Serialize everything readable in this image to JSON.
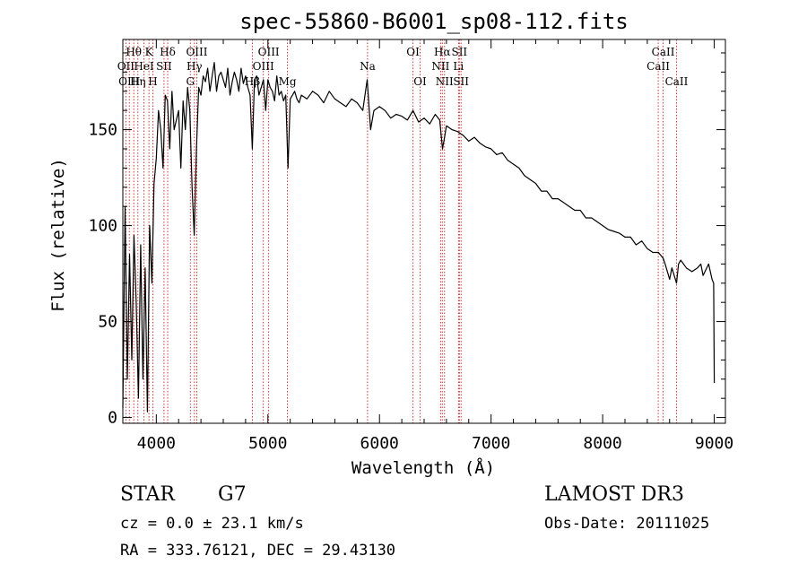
{
  "chart_data": {
    "type": "line",
    "title": "spec-55860-B6001_sp08-112.fits",
    "xlabel": "Wavelength (Å)",
    "ylabel": "Flux (relative)",
    "xlim": [
      3700,
      9100
    ],
    "ylim": [
      -3,
      197
    ],
    "xticks": [
      4000,
      5000,
      6000,
      7000,
      8000,
      9000
    ],
    "yticks": [
      0,
      50,
      100,
      150
    ],
    "series": [
      {
        "name": "flux",
        "x": [
          3700,
          3720,
          3740,
          3760,
          3780,
          3800,
          3820,
          3840,
          3860,
          3880,
          3900,
          3920,
          3940,
          3960,
          3980,
          4000,
          4020,
          4040,
          4060,
          4080,
          4100,
          4120,
          4140,
          4160,
          4180,
          4200,
          4220,
          4240,
          4260,
          4280,
          4300,
          4320,
          4340,
          4360,
          4380,
          4400,
          4420,
          4440,
          4460,
          4480,
          4500,
          4520,
          4540,
          4560,
          4580,
          4600,
          4620,
          4640,
          4660,
          4680,
          4700,
          4720,
          4740,
          4760,
          4780,
          4800,
          4820,
          4840,
          4860,
          4880,
          4900,
          4920,
          4940,
          4960,
          4980,
          5000,
          5020,
          5040,
          5060,
          5080,
          5100,
          5120,
          5140,
          5160,
          5180,
          5200,
          5220,
          5240,
          5260,
          5280,
          5300,
          5350,
          5400,
          5450,
          5500,
          5550,
          5600,
          5650,
          5700,
          5750,
          5800,
          5850,
          5890,
          5920,
          5950,
          6000,
          6050,
          6100,
          6150,
          6200,
          6250,
          6300,
          6350,
          6400,
          6450,
          6500,
          6540,
          6565,
          6580,
          6600,
          6650,
          6700,
          6750,
          6800,
          6850,
          6900,
          6950,
          7000,
          7050,
          7100,
          7150,
          7200,
          7250,
          7300,
          7350,
          7400,
          7450,
          7500,
          7550,
          7600,
          7650,
          7700,
          7750,
          7800,
          7850,
          7900,
          7950,
          8000,
          8050,
          8100,
          8150,
          8200,
          8250,
          8300,
          8350,
          8400,
          8450,
          8500,
          8542,
          8560,
          8600,
          8620,
          8662,
          8680,
          8700,
          8750,
          8800,
          8850,
          8880,
          8900,
          8950,
          8980,
          8995,
          9000
        ],
        "y": [
          5,
          110,
          20,
          85,
          30,
          95,
          60,
          10,
          90,
          20,
          78,
          3,
          100,
          70,
          122,
          135,
          160,
          150,
          130,
          168,
          165,
          140,
          170,
          150,
          155,
          160,
          130,
          165,
          150,
          172,
          160,
          120,
          95,
          140,
          172,
          168,
          178,
          175,
          182,
          170,
          178,
          185,
          170,
          178,
          180,
          176,
          172,
          182,
          168,
          175,
          180,
          176,
          170,
          182,
          174,
          178,
          172,
          168,
          140,
          176,
          178,
          168,
          172,
          176,
          160,
          176,
          172,
          170,
          165,
          178,
          168,
          170,
          165,
          168,
          130,
          166,
          168,
          170,
          166,
          164,
          168,
          166,
          170,
          168,
          164,
          170,
          166,
          164,
          162,
          166,
          164,
          160,
          176,
          150,
          160,
          162,
          160,
          156,
          158,
          157,
          155,
          160,
          154,
          156,
          153,
          158,
          155,
          140,
          145,
          152,
          150,
          149,
          147,
          144,
          146,
          143,
          141,
          140,
          137,
          138,
          134,
          132,
          130,
          126,
          124,
          122,
          118,
          118,
          114,
          114,
          112,
          110,
          108,
          108,
          104,
          104,
          102,
          100,
          98,
          97,
          96,
          94,
          94,
          90,
          92,
          88,
          86,
          86,
          83,
          80,
          72,
          78,
          70,
          80,
          82,
          78,
          76,
          78,
          80,
          74,
          80,
          72,
          70,
          18
        ]
      }
    ],
    "lines": [
      {
        "label": "Hθ",
        "wavelength": 3798,
        "level": 0
      },
      {
        "label": "OII",
        "wavelength": 3727,
        "level": 1
      },
      {
        "label": "OIII",
        "wavelength": 3758,
        "level": 2
      },
      {
        "label": "K",
        "wavelength": 3934,
        "level": 0
      },
      {
        "label": "HeI",
        "wavelength": 3889,
        "level": 1
      },
      {
        "label": "Hη",
        "wavelength": 3835,
        "level": 2
      },
      {
        "label": "Hδ",
        "wavelength": 4102,
        "level": 0
      },
      {
        "label": "SII",
        "wavelength": 4069,
        "level": 1
      },
      {
        "label": "H",
        "wavelength": 3969,
        "level": 2
      },
      {
        "label": "OIII",
        "wavelength": 4363,
        "level": 0
      },
      {
        "label": "Hγ",
        "wavelength": 4341,
        "level": 1
      },
      {
        "label": "G",
        "wavelength": 4305,
        "level": 2
      },
      {
        "label": "OIII",
        "wavelength": 5007,
        "level": 0
      },
      {
        "label": "OIII",
        "wavelength": 4959,
        "level": 1
      },
      {
        "label": "Hβ",
        "wavelength": 4861,
        "level": 2
      },
      {
        "label": "Mg",
        "wavelength": 5175,
        "level": 2
      },
      {
        "label": "Na",
        "wavelength": 5893,
        "level": 1
      },
      {
        "label": "OI",
        "wavelength": 6300,
        "level": 0
      },
      {
        "label": "OI",
        "wavelength": 6364,
        "level": 2
      },
      {
        "label": "Hα",
        "wavelength": 6563,
        "level": 0
      },
      {
        "label": "NII",
        "wavelength": 6548,
        "level": 1
      },
      {
        "label": "NII",
        "wavelength": 6583,
        "level": 2
      },
      {
        "label": "SII",
        "wavelength": 6716,
        "level": 0
      },
      {
        "label": "Li",
        "wavelength": 6708,
        "level": 1
      },
      {
        "label": "SII",
        "wavelength": 6731,
        "level": 2
      },
      {
        "label": "CaII",
        "wavelength": 8542,
        "level": 0
      },
      {
        "label": "CaII",
        "wavelength": 8498,
        "level": 1
      },
      {
        "label": "CaII",
        "wavelength": 8662,
        "level": 2
      }
    ]
  },
  "info": {
    "object_class": "STAR",
    "subclass": "G7",
    "redshift": "cz = 0.0 ± 23.1 km/s",
    "coords": "RA = 333.76121, DEC =  29.43130",
    "survey": "LAMOST DR3",
    "obs_date": "Obs-Date: 20111025"
  },
  "colors": {
    "line_marker": "#cc2222",
    "spectrum": "#000000"
  }
}
